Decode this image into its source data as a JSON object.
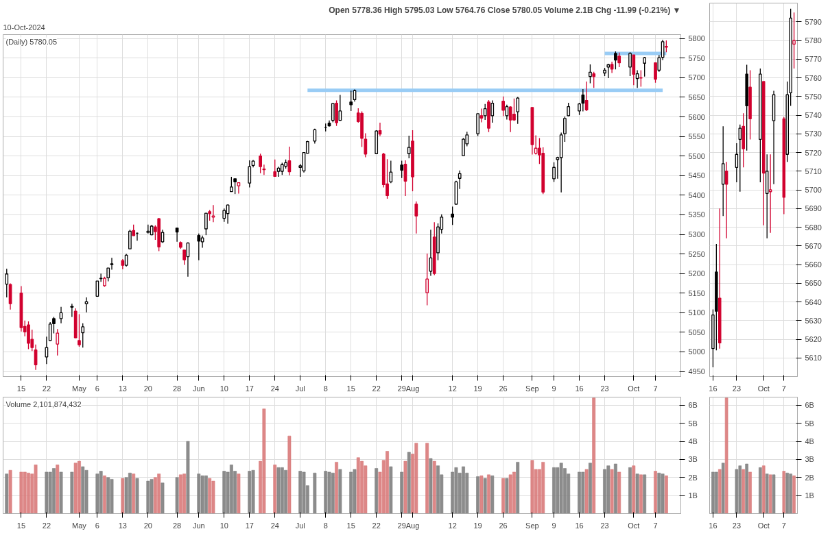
{
  "chart_data": [
    {
      "type": "candlestick",
      "title": "Open 5778.36 High 5795.03 Low 5764.76 Close 5780.05 Volume 2.1B Chg -11.99 (-0.21%) ▼",
      "subtitle": "10-Oct-2024",
      "annotations": [
        "(Daily) 5780.05"
      ],
      "x": [
        "2024-04-11",
        "2024-04-12",
        "2024-04-15",
        "2024-04-16",
        "2024-04-17",
        "2024-04-18",
        "2024-04-19",
        "2024-04-22",
        "2024-04-23",
        "2024-04-24",
        "2024-04-25",
        "2024-04-26",
        "2024-04-29",
        "2024-04-30",
        "2024-05-01",
        "2024-05-02",
        "2024-05-03",
        "2024-05-06",
        "2024-05-07",
        "2024-05-08",
        "2024-05-09",
        "2024-05-10",
        "2024-05-13",
        "2024-05-14",
        "2024-05-15",
        "2024-05-16",
        "2024-05-17",
        "2024-05-20",
        "2024-05-21",
        "2024-05-22",
        "2024-05-23",
        "2024-05-24",
        "2024-05-28",
        "2024-05-29",
        "2024-05-30",
        "2024-05-31",
        "2024-06-03",
        "2024-06-04",
        "2024-06-05",
        "2024-06-06",
        "2024-06-07",
        "2024-06-10",
        "2024-06-11",
        "2024-06-12",
        "2024-06-13",
        "2024-06-14",
        "2024-06-17",
        "2024-06-18",
        "2024-06-20",
        "2024-06-21",
        "2024-06-24",
        "2024-06-25",
        "2024-06-26",
        "2024-06-27",
        "2024-06-28",
        "2024-07-01",
        "2024-07-02",
        "2024-07-03",
        "2024-07-05",
        "2024-07-08",
        "2024-07-09",
        "2024-07-10",
        "2024-07-11",
        "2024-07-12",
        "2024-07-15",
        "2024-07-16",
        "2024-07-17",
        "2024-07-18",
        "2024-07-19",
        "2024-07-22",
        "2024-07-23",
        "2024-07-24",
        "2024-07-25",
        "2024-07-26",
        "2024-07-29",
        "2024-07-30",
        "2024-07-31",
        "2024-08-01",
        "2024-08-02",
        "2024-08-05",
        "2024-08-06",
        "2024-08-07",
        "2024-08-08",
        "2024-08-09",
        "2024-08-12",
        "2024-08-13",
        "2024-08-14",
        "2024-08-15",
        "2024-08-16",
        "2024-08-19",
        "2024-08-20",
        "2024-08-21",
        "2024-08-22",
        "2024-08-23",
        "2024-08-26",
        "2024-08-27",
        "2024-08-28",
        "2024-08-29",
        "2024-08-30",
        "2024-09-03",
        "2024-09-04",
        "2024-09-05",
        "2024-09-06",
        "2024-09-09",
        "2024-09-10",
        "2024-09-11",
        "2024-09-12",
        "2024-09-13",
        "2024-09-16",
        "2024-09-17",
        "2024-09-18",
        "2024-09-19",
        "2024-09-20",
        "2024-09-23",
        "2024-09-24",
        "2024-09-25",
        "2024-09-26",
        "2024-09-27",
        "2024-09-30",
        "2024-10-01",
        "2024-10-02",
        "2024-10-03",
        "2024-10-04",
        "2024-10-07",
        "2024-10-08",
        "2024-10-09",
        "2024-10-10"
      ],
      "ohlc": [
        [
          5173,
          5212,
          5139,
          5199
        ],
        [
          5172,
          5175,
          5108,
          5123
        ],
        [
          5150,
          5168,
          5052,
          5062
        ],
        [
          5065,
          5080,
          5040,
          5051
        ],
        [
          5069,
          5078,
          5007,
          5022
        ],
        [
          5032,
          5057,
          5002,
          5011
        ],
        [
          5005,
          5019,
          4954,
          4967
        ],
        [
          4987,
          5039,
          4969,
          5011
        ],
        [
          5029,
          5076,
          5028,
          5071
        ],
        [
          5085,
          5089,
          5047,
          5072
        ],
        [
          5020,
          5058,
          4991,
          5048
        ],
        [
          5085,
          5115,
          5073,
          5100
        ],
        [
          5114,
          5123,
          5089,
          5116
        ],
        [
          5104,
          5111,
          5035,
          5036
        ],
        [
          5029,
          5096,
          5013,
          5018
        ],
        [
          5049,
          5073,
          5011,
          5064
        ],
        [
          5123,
          5139,
          5101,
          5128
        ],
        [
          5142,
          5181,
          5142,
          5181
        ],
        [
          5187,
          5200,
          5179,
          5188
        ],
        [
          5169,
          5192,
          5166,
          5188
        ],
        [
          5189,
          5214,
          5180,
          5214
        ],
        [
          5225,
          5240,
          5210,
          5223
        ],
        [
          5233,
          5237,
          5211,
          5221
        ],
        [
          5221,
          5250,
          5218,
          5247
        ],
        [
          5263,
          5312,
          5263,
          5308
        ],
        [
          5310,
          5325,
          5296,
          5297
        ],
        [
          5303,
          5305,
          5284,
          5303
        ],
        [
          5305,
          5325,
          5302,
          5308
        ],
        [
          5299,
          5324,
          5298,
          5321
        ],
        [
          5319,
          5323,
          5286,
          5307
        ],
        [
          5340,
          5342,
          5257,
          5268
        ],
        [
          5281,
          5312,
          5278,
          5305
        ],
        [
          5316,
          5316,
          5281,
          5306
        ],
        [
          5279,
          5282,
          5263,
          5267
        ],
        [
          5260,
          5260,
          5222,
          5235
        ],
        [
          5243,
          5280,
          5192,
          5278
        ],
        [
          5297,
          5302,
          5234,
          5283
        ],
        [
          5281,
          5297,
          5266,
          5291
        ],
        [
          5314,
          5354,
          5298,
          5354
        ],
        [
          5358,
          5362,
          5335,
          5353
        ],
        [
          5344,
          5375,
          5331,
          5347
        ],
        [
          5341,
          5366,
          5332,
          5361
        ],
        [
          5353,
          5376,
          5327,
          5375
        ],
        [
          5409,
          5447,
          5409,
          5421
        ],
        [
          5442,
          5442,
          5403,
          5434
        ],
        [
          5424,
          5432,
          5404,
          5432
        ],
        [
          5431,
          5489,
          5420,
          5473
        ],
        [
          5476,
          5490,
          5471,
          5487
        ],
        [
          5500,
          5506,
          5456,
          5473
        ],
        [
          5467,
          5478,
          5452,
          5465
        ],
        [
          5460,
          5491,
          5448,
          5448
        ],
        [
          5461,
          5473,
          5447,
          5469
        ],
        [
          5461,
          5483,
          5452,
          5478
        ],
        [
          5474,
          5491,
          5468,
          5483
        ],
        [
          5488,
          5524,
          5451,
          5460
        ],
        [
          5471,
          5480,
          5447,
          5475
        ],
        [
          5462,
          5510,
          5458,
          5509
        ],
        [
          5507,
          5539,
          5507,
          5537
        ],
        [
          5538,
          5570,
          5532,
          5567
        ],
        [
          5573,
          5583,
          5563,
          5573
        ],
        [
          5584,
          5591,
          5575,
          5577
        ],
        [
          5591,
          5635,
          5586,
          5634
        ],
        [
          5635,
          5642,
          5577,
          5585
        ],
        [
          5591,
          5656,
          5590,
          5615
        ],
        [
          5638,
          5667,
          5615,
          5631
        ],
        [
          5644,
          5670,
          5639,
          5667
        ],
        [
          5610,
          5622,
          5585,
          5588
        ],
        [
          5609,
          5614,
          5523,
          5545
        ],
        [
          5543,
          5558,
          5497,
          5505
        ],
        [
          5506,
          5566,
          5506,
          5564
        ],
        [
          5565,
          5585,
          5551,
          5556
        ],
        [
          5505,
          5508,
          5420,
          5427
        ],
        [
          5429,
          5492,
          5391,
          5399
        ],
        [
          5434,
          5488,
          5431,
          5459
        ],
        [
          5477,
          5488,
          5444,
          5464
        ],
        [
          5479,
          5489,
          5398,
          5436
        ],
        [
          5506,
          5552,
          5494,
          5522
        ],
        [
          5538,
          5566,
          5410,
          5447
        ],
        [
          5377,
          5384,
          5302,
          5347
        ],
        [
          5151,
          5251,
          5119,
          5186
        ],
        [
          5206,
          5312,
          5194,
          5240
        ],
        [
          5293,
          5331,
          5196,
          5200
        ],
        [
          5253,
          5328,
          5234,
          5319
        ],
        [
          5313,
          5351,
          5302,
          5344
        ],
        [
          5352,
          5371,
          5324,
          5344
        ],
        [
          5377,
          5437,
          5377,
          5434
        ],
        [
          5443,
          5463,
          5416,
          5455
        ],
        [
          5501,
          5546,
          5501,
          5543
        ],
        [
          5531,
          5562,
          5525,
          5554
        ],
        [
          5557,
          5608,
          5551,
          5608
        ],
        [
          5603,
          5621,
          5586,
          5597
        ],
        [
          5603,
          5633,
          5592,
          5621
        ],
        [
          5638,
          5643,
          5561,
          5571
        ],
        [
          5603,
          5642,
          5585,
          5635
        ],
        [
          5640,
          5652,
          5602,
          5617
        ],
        [
          5603,
          5631,
          5593,
          5626
        ],
        [
          5625,
          5627,
          5561,
          5592
        ],
        [
          5607,
          5647,
          5590,
          5592
        ],
        [
          5613,
          5651,
          5582,
          5648
        ],
        [
          5624,
          5624,
          5504,
          5529
        ],
        [
          5507,
          5553,
          5504,
          5520
        ],
        [
          5520,
          5546,
          5480,
          5503
        ],
        [
          5507,
          5522,
          5403,
          5408
        ],
        [
          5442,
          5484,
          5434,
          5471
        ],
        [
          5491,
          5498,
          5442,
          5496
        ],
        [
          5496,
          5560,
          5407,
          5554
        ],
        [
          5557,
          5601,
          5536,
          5596
        ],
        [
          5603,
          5636,
          5602,
          5626
        ],
        [
          5615,
          5636,
          5605,
          5633
        ],
        [
          5656,
          5671,
          5614,
          5635
        ],
        [
          5642,
          5690,
          5615,
          5618
        ],
        [
          5703,
          5734,
          5686,
          5714
        ],
        [
          5710,
          5715,
          5674,
          5703
        ],
        [
          5712,
          5725,
          5704,
          5719
        ],
        [
          5727,
          5735,
          5699,
          5733
        ],
        [
          5734,
          5741,
          5712,
          5722
        ],
        [
          5762,
          5767,
          5721,
          5745
        ],
        [
          5755,
          5764,
          5727,
          5738
        ],
        [
          5727,
          5765,
          5704,
          5762
        ],
        [
          5758,
          5758,
          5681,
          5709
        ],
        [
          5698,
          5719,
          5674,
          5710
        ],
        [
          5699,
          5719,
          5677,
          5700
        ],
        [
          5737,
          5753,
          5703,
          5751
        ],
        [
          5738,
          5739,
          5687,
          5696
        ],
        [
          5719,
          5758,
          5715,
          5751
        ],
        [
          5752,
          5797,
          5745,
          5792
        ],
        [
          5778,
          5795,
          5765,
          5780
        ]
      ],
      "colors": [
        "#000000",
        "#d1002e",
        "#d1002e",
        "#d1002e",
        "#d1002e",
        "#d1002e",
        "#d1002e",
        "#000000",
        "#000000",
        "#000000",
        "#d1002e",
        "#000000",
        "#000000",
        "#d1002e",
        "#d1002e",
        "#000000",
        "#000000",
        "#000000",
        "#000000",
        "#d1002e",
        "#000000",
        "#000000",
        "#d1002e",
        "#000000",
        "#000000",
        "#d1002e",
        "#000000",
        "#000000",
        "#000000",
        "#d1002e",
        "#d1002e",
        "#000000",
        "#000000",
        "#d1002e",
        "#d1002e",
        "#000000",
        "#000000",
        "#000000",
        "#000000",
        "#d1002e",
        "#d1002e",
        "#000000",
        "#000000",
        "#000000",
        "#000000",
        "#d1002e",
        "#000000",
        "#000000",
        "#d1002e",
        "#d1002e",
        "#d1002e",
        "#000000",
        "#000000",
        "#000000",
        "#d1002e",
        "#000000",
        "#000000",
        "#000000",
        "#000000",
        "#000000",
        "#000000",
        "#000000",
        "#d1002e",
        "#000000",
        "#000000",
        "#000000",
        "#d1002e",
        "#d1002e",
        "#d1002e",
        "#000000",
        "#d1002e",
        "#d1002e",
        "#d1002e",
        "#000000",
        "#000000",
        "#d1002e",
        "#000000",
        "#d1002e",
        "#d1002e",
        "#d1002e",
        "#000000",
        "#d1002e",
        "#000000",
        "#000000",
        "#000000",
        "#000000",
        "#000000",
        "#000000",
        "#000000",
        "#000000",
        "#d1002e",
        "#000000",
        "#d1002e",
        "#000000",
        "#d1002e",
        "#000000",
        "#d1002e",
        "#d1002e",
        "#000000",
        "#d1002e",
        "#d1002e",
        "#d1002e",
        "#d1002e",
        "#000000",
        "#000000",
        "#000000",
        "#000000",
        "#000000",
        "#000000",
        "#000000",
        "#d1002e",
        "#000000",
        "#d1002e",
        "#000000",
        "#000000",
        "#d1002e",
        "#000000",
        "#d1002e",
        "#000000",
        "#d1002e",
        "#000000",
        "#d1002e",
        "#000000",
        "#d1002e",
        "#000000",
        "#000000",
        "#d1002e"
      ],
      "series": [
        {
          "type": "line",
          "x": [
            "2024-07-03",
            "2024-10-09"
          ],
          "values": [
            5668,
            5668
          ],
          "color": "#99ccf5"
        },
        {
          "type": "line",
          "x": [
            "2024-09-23",
            "2024-10-10"
          ],
          "values": [
            5762,
            5762
          ],
          "color": "#99ccf5"
        }
      ],
      "xlim": [
        "2024-04-10",
        "2024-10-14"
      ],
      "ylim": [
        4937,
        5810
      ],
      "yticks": [
        4950,
        5000,
        5050,
        5100,
        5150,
        5200,
        5250,
        5300,
        5350,
        5400,
        5450,
        5500,
        5550,
        5600,
        5650,
        5700,
        5750,
        5800
      ],
      "xticks": [
        {
          "value": "2024-04-15",
          "label": "15"
        },
        {
          "value": "2024-04-22",
          "label": "22"
        },
        {
          "value": "2024-05-01",
          "label": "May"
        },
        {
          "value": "2024-05-06",
          "label": "6"
        },
        {
          "value": "2024-05-13",
          "label": "13"
        },
        {
          "value": "2024-05-20",
          "label": "20"
        },
        {
          "value": "2024-05-28",
          "label": "28"
        },
        {
          "value": "2024-06-03",
          "label": "Jun"
        },
        {
          "value": "2024-06-10",
          "label": "10"
        },
        {
          "value": "2024-06-17",
          "label": "17"
        },
        {
          "value": "2024-06-24",
          "label": "24"
        },
        {
          "value": "2024-07-01",
          "label": "Jul"
        },
        {
          "value": "2024-07-08",
          "label": "8"
        },
        {
          "value": "2024-07-15",
          "label": "15"
        },
        {
          "value": "2024-07-22",
          "label": "22"
        },
        {
          "value": "2024-07-29",
          "label": "29"
        },
        {
          "value": "2024-08-01",
          "label": "Aug"
        },
        {
          "value": "2024-08-12",
          "label": "12"
        },
        {
          "value": "2024-08-19",
          "label": "19"
        },
        {
          "value": "2024-08-26",
          "label": "26"
        },
        {
          "value": "2024-09-03",
          "label": "Sep"
        },
        {
          "value": "2024-09-09",
          "label": "9"
        },
        {
          "value": "2024-09-16",
          "label": "16"
        },
        {
          "value": "2024-09-23",
          "label": "23"
        },
        {
          "value": "2024-10-01",
          "label": "Oct"
        },
        {
          "value": "2024-10-07",
          "label": "7"
        }
      ],
      "grid": true
    },
    {
      "type": "bar",
      "annotations": [
        "Volume 2,101,874,432"
      ],
      "x": [
        "2024-04-11",
        "2024-04-12",
        "2024-04-15",
        "2024-04-16",
        "2024-04-17",
        "2024-04-18",
        "2024-04-19",
        "2024-04-22",
        "2024-04-23",
        "2024-04-24",
        "2024-04-25",
        "2024-04-26",
        "2024-04-29",
        "2024-04-30",
        "2024-05-01",
        "2024-05-02",
        "2024-05-03",
        "2024-05-06",
        "2024-05-07",
        "2024-05-08",
        "2024-05-09",
        "2024-05-10",
        "2024-05-13",
        "2024-05-14",
        "2024-05-15",
        "2024-05-16",
        "2024-05-17",
        "2024-05-20",
        "2024-05-21",
        "2024-05-22",
        "2024-05-23",
        "2024-05-24",
        "2024-05-28",
        "2024-05-29",
        "2024-05-30",
        "2024-05-31",
        "2024-06-03",
        "2024-06-04",
        "2024-06-05",
        "2024-06-06",
        "2024-06-07",
        "2024-06-10",
        "2024-06-11",
        "2024-06-12",
        "2024-06-13",
        "2024-06-14",
        "2024-06-17",
        "2024-06-18",
        "2024-06-20",
        "2024-06-21",
        "2024-06-24",
        "2024-06-25",
        "2024-06-26",
        "2024-06-27",
        "2024-06-28",
        "2024-07-01",
        "2024-07-02",
        "2024-07-03",
        "2024-07-05",
        "2024-07-08",
        "2024-07-09",
        "2024-07-10",
        "2024-07-11",
        "2024-07-12",
        "2024-07-15",
        "2024-07-16",
        "2024-07-17",
        "2024-07-18",
        "2024-07-19",
        "2024-07-22",
        "2024-07-23",
        "2024-07-24",
        "2024-07-25",
        "2024-07-26",
        "2024-07-29",
        "2024-07-30",
        "2024-07-31",
        "2024-08-01",
        "2024-08-02",
        "2024-08-05",
        "2024-08-06",
        "2024-08-07",
        "2024-08-08",
        "2024-08-09",
        "2024-08-12",
        "2024-08-13",
        "2024-08-14",
        "2024-08-15",
        "2024-08-16",
        "2024-08-19",
        "2024-08-20",
        "2024-08-21",
        "2024-08-22",
        "2024-08-23",
        "2024-08-26",
        "2024-08-27",
        "2024-08-28",
        "2024-08-29",
        "2024-08-30",
        "2024-09-03",
        "2024-09-04",
        "2024-09-05",
        "2024-09-06",
        "2024-09-09",
        "2024-09-10",
        "2024-09-11",
        "2024-09-12",
        "2024-09-13",
        "2024-09-16",
        "2024-09-17",
        "2024-09-18",
        "2024-09-19",
        "2024-09-20",
        "2024-09-23",
        "2024-09-24",
        "2024-09-25",
        "2024-09-26",
        "2024-09-27",
        "2024-09-30",
        "2024-10-01",
        "2024-10-02",
        "2024-10-03",
        "2024-10-04",
        "2024-10-07",
        "2024-10-08",
        "2024-10-09",
        "2024-10-10"
      ],
      "xlim": [
        "2024-04-10",
        "2024-10-14"
      ],
      "values": [
        2.2,
        2.4,
        2.3,
        2.3,
        2.25,
        2.2,
        2.7,
        2.3,
        2.3,
        2.5,
        2.7,
        2.3,
        2.3,
        2.8,
        2.9,
        2.6,
        2.4,
        2.2,
        2.35,
        2.1,
        2.0,
        1.9,
        1.95,
        2.0,
        2.25,
        2.2,
        1.95,
        1.8,
        1.9,
        2.0,
        2.2,
        1.7,
        2.0,
        2.15,
        2.2,
        4.0,
        2.2,
        2.1,
        2.1,
        1.95,
        1.8,
        2.35,
        2.3,
        2.7,
        2.35,
        2.2,
        2.35,
        2.4,
        2.9,
        5.8,
        2.7,
        2.55,
        2.55,
        2.4,
        4.3,
        2.35,
        2.3,
        1.55,
        2.25,
        2.35,
        2.3,
        2.25,
        2.85,
        2.45,
        2.3,
        2.45,
        3.1,
        2.9,
        2.65,
        2.5,
        2.3,
        2.95,
        3.45,
        2.6,
        2.3,
        2.9,
        3.4,
        3.3,
        3.9,
        3.9,
        3.05,
        2.9,
        2.65,
        2.15,
        2.3,
        2.55,
        2.25,
        2.6,
        2.25,
        2.05,
        2.1,
        1.95,
        2.15,
        2.1,
        1.95,
        1.95,
        2.15,
        2.3,
        2.85,
        2.95,
        2.45,
        2.45,
        2.85,
        2.55,
        2.55,
        2.8,
        2.5,
        2.2,
        2.3,
        2.3,
        2.45,
        2.8,
        6.4,
        2.45,
        2.65,
        2.45,
        2.75,
        2.3,
        2.55,
        2.65,
        2.2,
        2.15,
        2.15,
        2.35,
        2.25,
        2.2,
        2.1
      ],
      "colors": [
        "#808080",
        "#d97a7a",
        "#d97a7a",
        "#d97a7a",
        "#d97a7a",
        "#d97a7a",
        "#d97a7a",
        "#808080",
        "#808080",
        "#808080",
        "#d97a7a",
        "#808080",
        "#808080",
        "#d97a7a",
        "#d97a7a",
        "#808080",
        "#808080",
        "#808080",
        "#808080",
        "#d97a7a",
        "#808080",
        "#808080",
        "#d97a7a",
        "#808080",
        "#808080",
        "#d97a7a",
        "#808080",
        "#808080",
        "#808080",
        "#d97a7a",
        "#d97a7a",
        "#808080",
        "#808080",
        "#d97a7a",
        "#d97a7a",
        "#808080",
        "#808080",
        "#808080",
        "#808080",
        "#d97a7a",
        "#d97a7a",
        "#808080",
        "#808080",
        "#808080",
        "#808080",
        "#d97a7a",
        "#808080",
        "#808080",
        "#d97a7a",
        "#d97a7a",
        "#d97a7a",
        "#808080",
        "#808080",
        "#808080",
        "#d97a7a",
        "#808080",
        "#808080",
        "#808080",
        "#808080",
        "#808080",
        "#808080",
        "#808080",
        "#d97a7a",
        "#808080",
        "#808080",
        "#808080",
        "#d97a7a",
        "#d97a7a",
        "#d97a7a",
        "#808080",
        "#d97a7a",
        "#d97a7a",
        "#d97a7a",
        "#808080",
        "#808080",
        "#d97a7a",
        "#808080",
        "#d97a7a",
        "#d97a7a",
        "#d97a7a",
        "#808080",
        "#d97a7a",
        "#808080",
        "#808080",
        "#808080",
        "#808080",
        "#808080",
        "#808080",
        "#808080",
        "#808080",
        "#d97a7a",
        "#808080",
        "#d97a7a",
        "#808080",
        "#d97a7a",
        "#808080",
        "#d97a7a",
        "#d97a7a",
        "#808080",
        "#d97a7a",
        "#d97a7a",
        "#d97a7a",
        "#d97a7a",
        "#808080",
        "#808080",
        "#808080",
        "#808080",
        "#808080",
        "#808080",
        "#808080",
        "#d97a7a",
        "#808080",
        "#d97a7a",
        "#808080",
        "#808080",
        "#d97a7a",
        "#808080",
        "#d97a7a",
        "#808080",
        "#d97a7a",
        "#808080",
        "#d97a7a",
        "#808080",
        "#d97a7a",
        "#808080",
        "#808080",
        "#d97a7a"
      ],
      "ylim": [
        0,
        6.45
      ],
      "yticks": [
        {
          "value": 1,
          "label": "1B"
        },
        {
          "value": 2,
          "label": "2B"
        },
        {
          "value": 3,
          "label": "3B"
        },
        {
          "value": 4,
          "label": "4B"
        },
        {
          "value": 5,
          "label": "5B"
        },
        {
          "value": 6,
          "label": "6B"
        }
      ],
      "xticks": [
        {
          "value": "2024-04-15",
          "label": "15"
        },
        {
          "value": "2024-04-22",
          "label": "22"
        },
        {
          "value": "2024-05-01",
          "label": "May"
        },
        {
          "value": "2024-05-06",
          "label": "6"
        },
        {
          "value": "2024-05-13",
          "label": "13"
        },
        {
          "value": "2024-05-20",
          "label": "20"
        },
        {
          "value": "2024-05-28",
          "label": "28"
        },
        {
          "value": "2024-06-03",
          "label": "Jun"
        },
        {
          "value": "2024-06-10",
          "label": "10"
        },
        {
          "value": "2024-06-17",
          "label": "17"
        },
        {
          "value": "2024-06-24",
          "label": "24"
        },
        {
          "value": "2024-07-01",
          "label": "Jul"
        },
        {
          "value": "2024-07-08",
          "label": "8"
        },
        {
          "value": "2024-07-15",
          "label": "15"
        },
        {
          "value": "2024-07-22",
          "label": "22"
        },
        {
          "value": "2024-07-29",
          "label": "29"
        },
        {
          "value": "2024-08-01",
          "label": "Aug"
        },
        {
          "value": "2024-08-12",
          "label": "12"
        },
        {
          "value": "2024-08-19",
          "label": "19"
        },
        {
          "value": "2024-08-26",
          "label": "26"
        },
        {
          "value": "2024-09-03",
          "label": "Sep"
        },
        {
          "value": "2024-09-09",
          "label": "9"
        },
        {
          "value": "2024-09-16",
          "label": "16"
        },
        {
          "value": "2024-09-23",
          "label": "23"
        },
        {
          "value": "2024-10-01",
          "label": "Oct"
        },
        {
          "value": "2024-10-07",
          "label": "7"
        }
      ],
      "grid": true
    },
    {
      "type": "candlestick",
      "x": [
        "2024-09-16",
        "2024-09-17",
        "2024-09-18",
        "2024-09-19",
        "2024-09-20",
        "2024-09-23",
        "2024-09-24",
        "2024-09-25",
        "2024-09-26",
        "2024-09-27",
        "2024-09-30",
        "2024-10-01",
        "2024-10-02",
        "2024-10-03",
        "2024-10-04",
        "2024-10-07",
        "2024-10-08",
        "2024-10-09",
        "2024-10-10"
      ],
      "ohlc": [
        [
          5615,
          5636,
          5605,
          5633
        ],
        [
          5656,
          5671,
          5614,
          5635
        ],
        [
          5642,
          5690,
          5615,
          5618
        ],
        [
          5703,
          5734,
          5686,
          5714
        ],
        [
          5710,
          5715,
          5674,
          5703
        ],
        [
          5712,
          5725,
          5704,
          5719
        ],
        [
          5727,
          5735,
          5699,
          5733
        ],
        [
          5734,
          5741,
          5712,
          5722
        ],
        [
          5762,
          5767,
          5721,
          5745
        ],
        [
          5755,
          5764,
          5727,
          5738
        ],
        [
          5727,
          5765,
          5704,
          5762
        ],
        [
          5758,
          5758,
          5681,
          5709
        ],
        [
          5698,
          5719,
          5674,
          5710
        ],
        [
          5699,
          5719,
          5677,
          5700
        ],
        [
          5737,
          5753,
          5703,
          5751
        ],
        [
          5738,
          5739,
          5687,
          5696
        ],
        [
          5719,
          5758,
          5715,
          5751
        ],
        [
          5752,
          5797,
          5745,
          5792
        ],
        [
          5778,
          5795,
          5765,
          5780
        ]
      ],
      "colors": [
        "#000000",
        "#000000",
        "#d1002e",
        "#000000",
        "#d1002e",
        "#000000",
        "#000000",
        "#d1002e",
        "#000000",
        "#d1002e",
        "#000000",
        "#d1002e",
        "#000000",
        "#d1002e",
        "#000000",
        "#d1002e",
        "#000000",
        "#000000",
        "#d1002e"
      ],
      "xlim": [
        "2024-09-15",
        "2024-10-11"
      ],
      "ylim": [
        5600,
        5800
      ],
      "yticks": [
        5610,
        5620,
        5630,
        5640,
        5650,
        5660,
        5670,
        5680,
        5690,
        5700,
        5710,
        5720,
        5730,
        5740,
        5750,
        5760,
        5770,
        5780,
        5790
      ],
      "xticks": [
        {
          "value": "2024-09-16",
          "label": "16"
        },
        {
          "value": "2024-09-23",
          "label": "23"
        },
        {
          "value": "2024-10-01",
          "label": "Oct"
        },
        {
          "value": "2024-10-07",
          "label": "7"
        }
      ],
      "grid": true
    },
    {
      "type": "bar",
      "x": [
        "2024-09-16",
        "2024-09-17",
        "2024-09-18",
        "2024-09-19",
        "2024-09-20",
        "2024-09-23",
        "2024-09-24",
        "2024-09-25",
        "2024-09-26",
        "2024-09-27",
        "2024-09-30",
        "2024-10-01",
        "2024-10-02",
        "2024-10-03",
        "2024-10-04",
        "2024-10-07",
        "2024-10-08",
        "2024-10-09",
        "2024-10-10"
      ],
      "xlim": [
        "2024-09-15",
        "2024-10-11"
      ],
      "values": [
        2.3,
        2.3,
        2.45,
        2.8,
        6.4,
        2.45,
        2.65,
        2.45,
        2.75,
        2.3,
        2.55,
        2.65,
        2.2,
        2.15,
        2.15,
        2.35,
        2.25,
        2.2,
        2.1
      ],
      "colors": [
        "#808080",
        "#808080",
        "#d97a7a",
        "#808080",
        "#d97a7a",
        "#808080",
        "#808080",
        "#d97a7a",
        "#808080",
        "#d97a7a",
        "#808080",
        "#d97a7a",
        "#808080",
        "#d97a7a",
        "#808080",
        "#d97a7a",
        "#808080",
        "#808080",
        "#d97a7a"
      ],
      "ylim": [
        0,
        6.45
      ],
      "yticks": [
        {
          "value": 1,
          "label": "1B"
        },
        {
          "value": 2,
          "label": "2B"
        },
        {
          "value": 3,
          "label": "3B"
        },
        {
          "value": 4,
          "label": "4B"
        },
        {
          "value": 5,
          "label": "5B"
        },
        {
          "value": 6,
          "label": "6B"
        }
      ],
      "xticks": [
        {
          "value": "2024-09-16",
          "label": "16"
        },
        {
          "value": "2024-09-23",
          "label": "23"
        },
        {
          "value": "2024-10-01",
          "label": "Oct"
        },
        {
          "value": "2024-10-07",
          "label": "7"
        }
      ],
      "grid": true
    }
  ]
}
